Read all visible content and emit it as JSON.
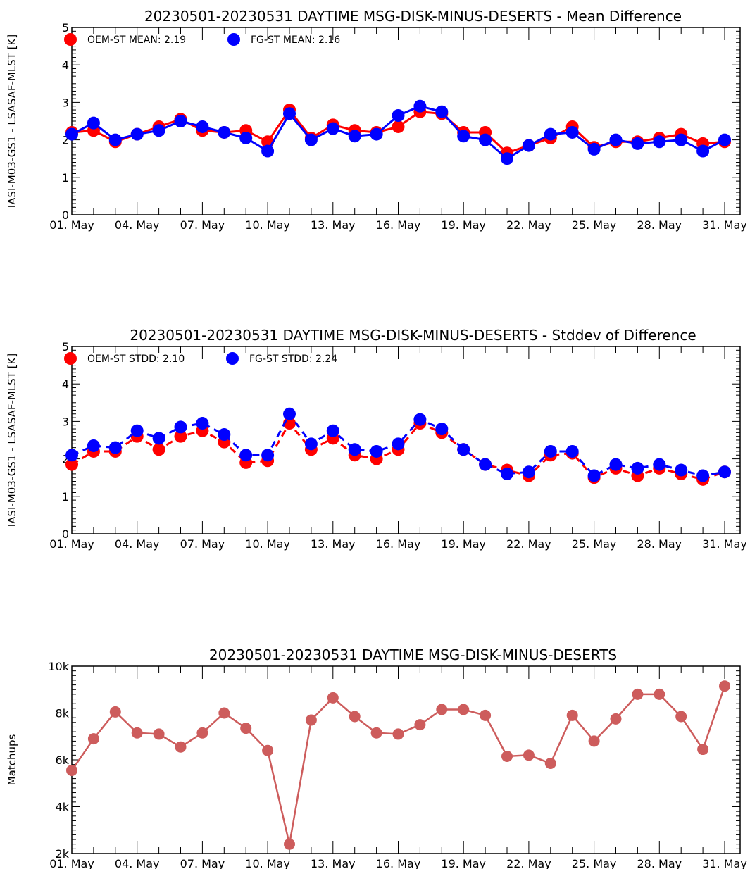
{
  "chart_data": [
    {
      "type": "line",
      "title": "20230501-20230531 DAYTIME MSG-DISK-MINUS-DESERTS - Mean Difference",
      "ylabel": "IASI-M03-GS1 - LSASAF-MLST [K]",
      "xlabel": "",
      "ylim": [
        0,
        5
      ],
      "yticks": [
        0,
        1,
        2,
        3,
        4,
        5
      ],
      "ytick_labels": [
        "0",
        "1",
        "2",
        "3",
        "4",
        "5"
      ],
      "x_tick_days": [
        1,
        4,
        7,
        10,
        13,
        16,
        19,
        22,
        25,
        28,
        31
      ],
      "x_tick_labels": [
        "01. May",
        "04. May",
        "07. May",
        "10. May",
        "13. May",
        "16. May",
        "19. May",
        "22. May",
        "25. May",
        "28. May",
        "31. May"
      ],
      "legend_position": "top-left",
      "series": [
        {
          "name": "OEM-ST",
          "legend": "OEM-ST MEAN: 2.19",
          "color": "#ff0000",
          "dash": "solid",
          "values": [
            2.2,
            2.25,
            1.95,
            2.15,
            2.35,
            2.55,
            2.25,
            2.2,
            2.25,
            1.95,
            2.8,
            2.05,
            2.4,
            2.25,
            2.2,
            2.35,
            2.75,
            2.7,
            2.2,
            2.2,
            1.65,
            1.85,
            2.05,
            2.35,
            1.8,
            1.95,
            1.95,
            2.05,
            2.15,
            1.9,
            1.95
          ]
        },
        {
          "name": "FG-ST",
          "legend": "FG-ST MEAN: 2.16",
          "color": "#0000ff",
          "dash": "solid",
          "values": [
            2.15,
            2.45,
            2.0,
            2.15,
            2.25,
            2.5,
            2.35,
            2.2,
            2.05,
            1.7,
            2.7,
            2.0,
            2.3,
            2.1,
            2.15,
            2.65,
            2.9,
            2.75,
            2.1,
            2.0,
            1.5,
            1.85,
            2.15,
            2.2,
            1.75,
            2.0,
            1.9,
            1.95,
            2.0,
            1.7,
            2.0
          ]
        }
      ]
    },
    {
      "type": "line",
      "title": "20230501-20230531 DAYTIME MSG-DISK-MINUS-DESERTS - Stddev of Difference",
      "ylabel": "IASI-M03-GS1 - LSASAF-MLST [K]",
      "xlabel": "",
      "ylim": [
        0,
        5
      ],
      "yticks": [
        0,
        1,
        2,
        3,
        4,
        5
      ],
      "ytick_labels": [
        "0",
        "1",
        "2",
        "3",
        "4",
        "5"
      ],
      "x_tick_days": [
        1,
        4,
        7,
        10,
        13,
        16,
        19,
        22,
        25,
        28,
        31
      ],
      "x_tick_labels": [
        "01. May",
        "04. May",
        "07. May",
        "10. May",
        "13. May",
        "16. May",
        "19. May",
        "22. May",
        "25. May",
        "28. May",
        "31. May"
      ],
      "legend_position": "top-left",
      "series": [
        {
          "name": "OEM-ST",
          "legend": "OEM-ST STDD: 2.10",
          "color": "#ff0000",
          "dash": "dashed",
          "values": [
            1.85,
            2.2,
            2.2,
            2.6,
            2.25,
            2.6,
            2.75,
            2.45,
            1.9,
            1.95,
            2.95,
            2.25,
            2.55,
            2.1,
            2.0,
            2.25,
            2.95,
            2.7,
            2.25,
            1.85,
            1.7,
            1.55,
            2.1,
            2.15,
            1.5,
            1.75,
            1.55,
            1.75,
            1.6,
            1.45,
            1.65
          ]
        },
        {
          "name": "FG-ST",
          "legend": "FG-ST STDD: 2.24",
          "color": "#0000ff",
          "dash": "dashed",
          "values": [
            2.1,
            2.35,
            2.3,
            2.75,
            2.55,
            2.85,
            2.95,
            2.65,
            2.1,
            2.1,
            3.2,
            2.4,
            2.75,
            2.25,
            2.2,
            2.4,
            3.05,
            2.8,
            2.25,
            1.85,
            1.6,
            1.65,
            2.2,
            2.2,
            1.55,
            1.85,
            1.75,
            1.85,
            1.7,
            1.55,
            1.65
          ]
        }
      ]
    },
    {
      "type": "line",
      "title": "20230501-20230531 DAYTIME MSG-DISK-MINUS-DESERTS",
      "ylabel": "Matchups",
      "xlabel": "",
      "ylim": [
        2000,
        10000
      ],
      "yticks": [
        2000,
        4000,
        6000,
        8000,
        10000
      ],
      "ytick_labels": [
        "2k",
        "4k",
        "6k",
        "8k",
        "10k"
      ],
      "x_tick_days": [
        1,
        4,
        7,
        10,
        13,
        16,
        19,
        22,
        25,
        28,
        31
      ],
      "x_tick_labels": [
        "01. May",
        "04. May",
        "07. May",
        "10. May",
        "13. May",
        "16. May",
        "19. May",
        "22. May",
        "25. May",
        "28. May",
        "31. May"
      ],
      "legend_position": "",
      "series": [
        {
          "name": "",
          "legend": "",
          "color": "#cd5c5c",
          "dash": "solid",
          "values": [
            5550,
            6900,
            8050,
            7150,
            7100,
            6550,
            7150,
            8000,
            7350,
            6400,
            2400,
            7700,
            8650,
            7850,
            7150,
            7100,
            7500,
            8150,
            8150,
            7900,
            6150,
            6200,
            5850,
            7900,
            6800,
            7750,
            8800,
            8800,
            7850,
            6450,
            9150
          ]
        }
      ]
    }
  ]
}
